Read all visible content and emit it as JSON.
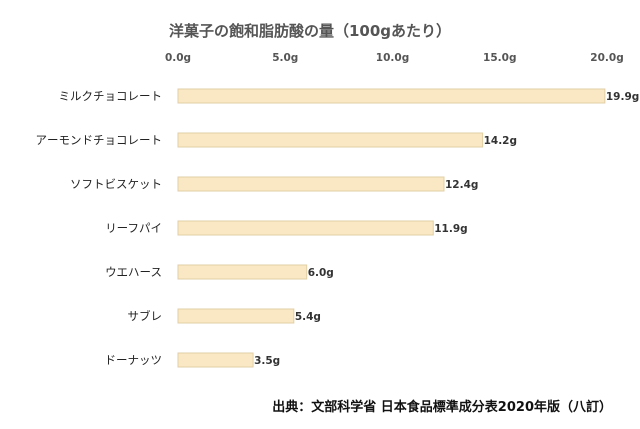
{
  "chart_data": {
    "type": "bar",
    "orientation": "horizontal",
    "title": "洋菓子の飽和脂肪酸の量（100gあたり）",
    "categories": [
      "ミルクチョコレート",
      "アーモンドチョコレート",
      "ソフトビスケット",
      "リーフパイ",
      "ウエハース",
      "サブレ",
      "ドーナッツ"
    ],
    "values": [
      19.9,
      14.2,
      12.4,
      11.9,
      6.0,
      5.4,
      3.5
    ],
    "value_labels": [
      "19.9g",
      "14.2g",
      "12.4g",
      "11.9g",
      "6.0g",
      "5.4g",
      "3.5g"
    ],
    "x_ticks": [
      0,
      5,
      10,
      15,
      20
    ],
    "x_tick_labels": [
      "0.0g",
      "5.0g",
      "10.0g",
      "15.0g",
      "20.0g"
    ],
    "xlim": [
      0,
      20
    ],
    "xaxis_position": "top",
    "grid": false,
    "legend": "none",
    "bar_color": "#fae8c4",
    "bar_edge_color": "#e2cfa6",
    "source": "出典：文部科学省 日本食品標準成分表2020年版（八訂）"
  }
}
